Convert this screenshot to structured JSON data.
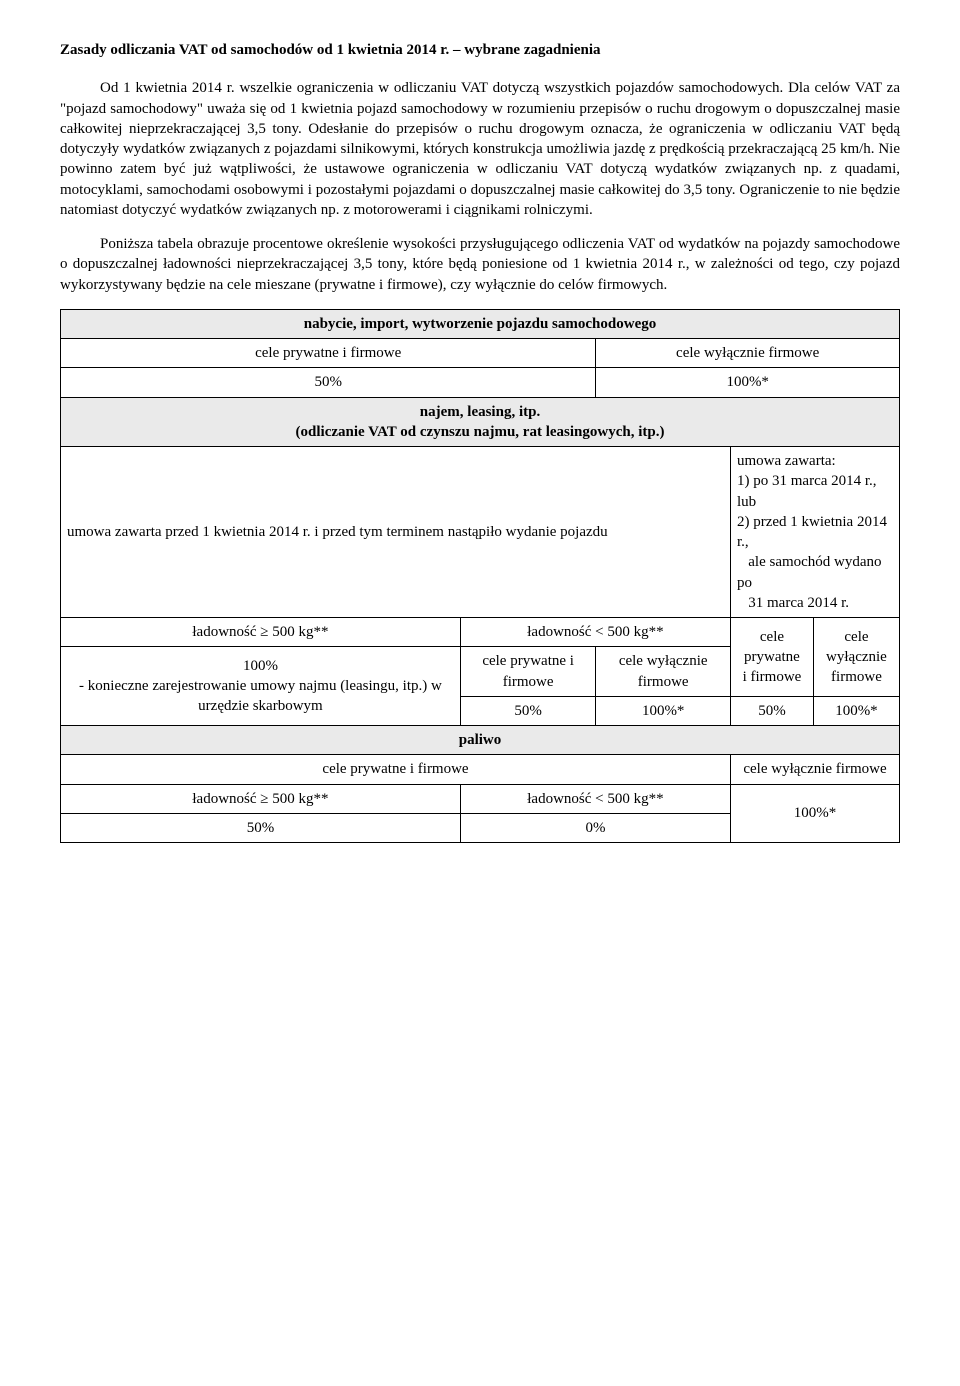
{
  "title": "Zasady odliczania VAT od samochodów od 1 kwietnia 2014 r. – wybrane zagadnienia",
  "para1": "Od 1 kwietnia 2014 r. wszelkie ograniczenia w odliczaniu VAT dotyczą wszystkich pojazdów samochodowych. Dla celów VAT za \"pojazd samochodowy\" uważa się od 1 kwietnia pojazd samochodowy w rozumieniu przepisów o ruchu drogowym o dopuszczalnej masie całkowitej nieprzekraczającej 3,5 tony. Odesłanie do przepisów o ruchu drogowym oznacza, że ograniczenia w odliczaniu VAT będą dotyczyły wydatków związanych z pojazdami silnikowymi, których konstrukcja umożliwia jazdę z prędkością przekraczającą 25 km/h. Nie powinno zatem być już wątpliwości, że ustawowe ograniczenia w odliczaniu VAT dotyczą wydatków związanych np. z quadami, motocyklami, samochodami osobowymi i pozostałymi pojazdami o dopuszczalnej masie całkowitej do 3,5 tony. Ograniczenie to nie będzie natomiast dotyczyć wydatków związanych np. z motorowerami i ciągnikami rolniczymi.",
  "para2": "Poniższa tabela obrazuje procentowe określenie wysokości przysługującego odliczenia VAT od wydatków na pojazdy samochodowe o dopuszczalnej ładowności nieprzekraczającej 3,5 tony, które będą poniesione od 1 kwietnia 2014 r., w zależności od tego, czy pojazd wykorzystywany będzie na cele mieszane (prywatne i firmowe), czy wyłącznie do celów firmowych.",
  "table": {
    "section1_header": "nabycie, import, wytworzenie pojazdu samochodowego",
    "section1_col1": "cele prywatne i firmowe",
    "section1_col2": "cele wyłącznie firmowe",
    "section1_val1": "50%",
    "section1_val2": "100%*",
    "section2_header_line1": "najem, leasing, itp.",
    "section2_header_line2": "(odliczanie VAT od czynszu najmu, rat leasingowych, itp.)",
    "section2_left_text": "umowa zawarta przed 1 kwietnia 2014 r. i przed tym terminem nastąpiło wydanie pojazdu",
    "section2_right_line1": "umowa zawarta:",
    "section2_right_line2": "1) po 31 marca 2014 r., lub",
    "section2_right_line3": "2) przed 1 kwietnia 2014 r.,",
    "section2_right_line4": "   ale samochód wydano po",
    "section2_right_line5": "   31 marca 2014 r.",
    "load_ge": "ładowność ≥ 500 kg**",
    "load_lt": "ładowność < 500 kg**",
    "cele_pryw": "cele prywatne i firmowe",
    "cele_wyl": "cele wyłącznie firmowe",
    "cele_pryw_ml": "cele\nprywatne\ni firmowe",
    "cele_wyl_ml": "cele\nwyłącznie\nfirmowe",
    "reg_text": "100%\n- konieczne zarejestrowanie umowy najmu (leasingu, itp.) w urzędzie skarbowym",
    "v50": "50%",
    "v100s": "100%*",
    "paliwo_header": "paliwo",
    "paliwo_col1": "cele prywatne i firmowe",
    "paliwo_col2": "cele wyłącznie firmowe",
    "paliwo_v50": "50%",
    "paliwo_v0": "0%",
    "paliwo_v100": "100%*"
  }
}
